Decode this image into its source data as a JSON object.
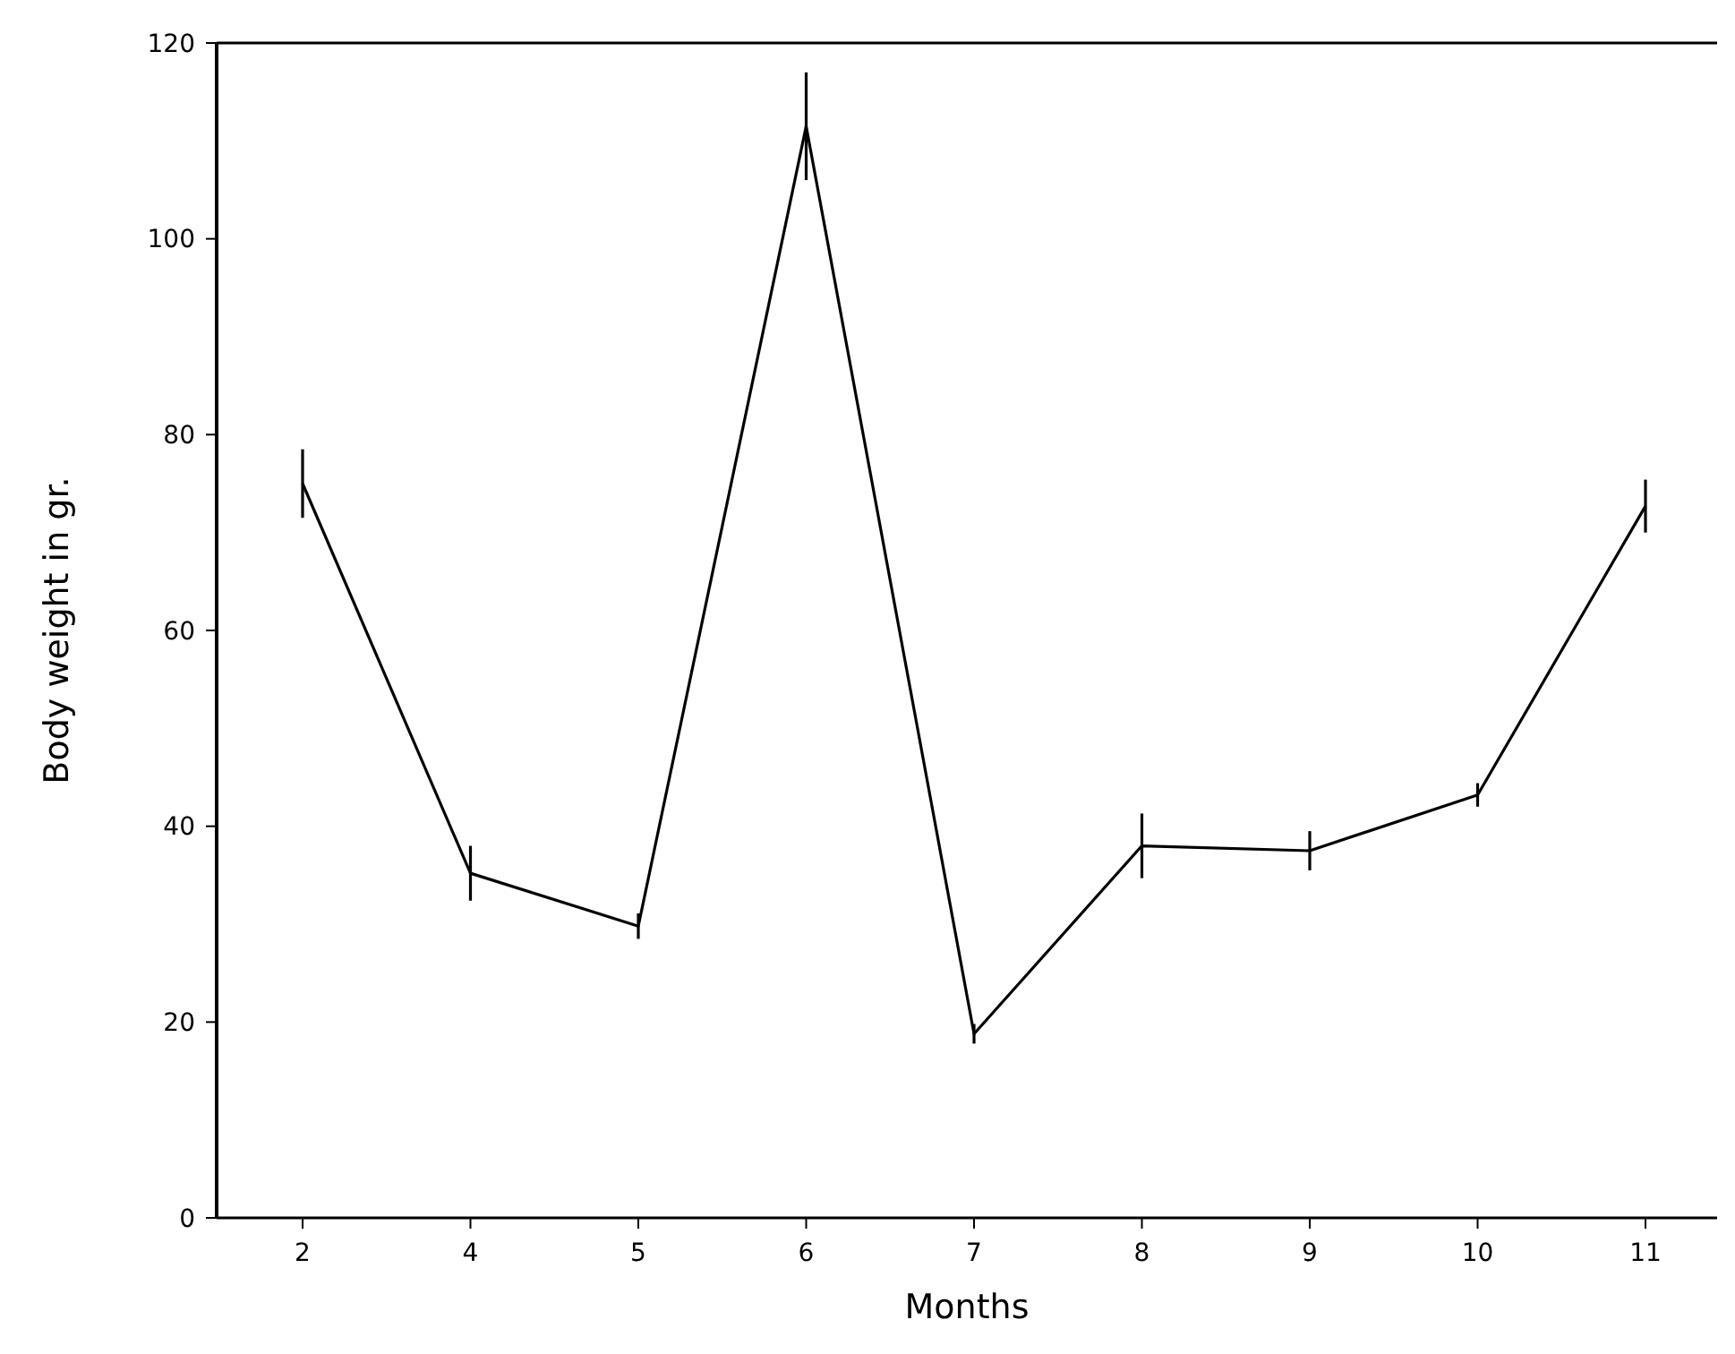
{
  "chart_data": {
    "type": "line",
    "xlabel": "Months",
    "ylabel": "Body weight in gr.",
    "categories": [
      "2",
      "4",
      "5",
      "6",
      "7",
      "8",
      "9",
      "10",
      "11"
    ],
    "values": [
      75.0,
      35.2,
      29.8,
      111.5,
      18.8,
      38.0,
      37.5,
      43.2,
      72.7
    ],
    "errors": [
      3.5,
      2.8,
      1.3,
      5.5,
      1,
      3.3,
      2,
      1.2,
      2.7
    ],
    "color": "#000000",
    "ylim": [
      0,
      120
    ],
    "yticks": [
      0,
      20,
      40,
      60,
      80,
      100,
      120
    ]
  }
}
